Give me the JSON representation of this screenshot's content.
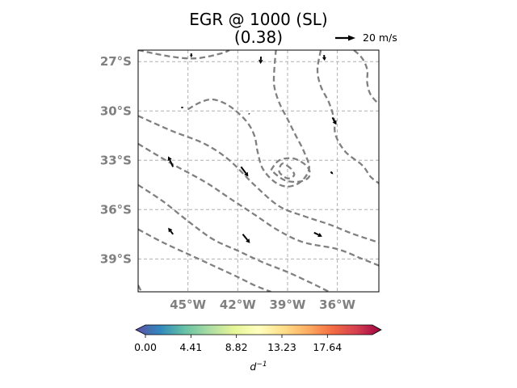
{
  "chart_data": {
    "type": "contour",
    "title_line1": "EGR @ 1000 (SL)",
    "title_line2": "(0.38)",
    "x_ticks": [
      "45°W",
      "42°W",
      "39°W",
      "36°W"
    ],
    "x_tick_values": [
      -45,
      -42,
      -39,
      -36
    ],
    "y_ticks": [
      "27°S",
      "30°S",
      "33°S",
      "36°S",
      "39°S"
    ],
    "y_tick_values": [
      -27,
      -30,
      -33,
      -36,
      -39
    ],
    "xlim": [
      -48,
      -33.5
    ],
    "ylim": [
      -41,
      -26.3
    ],
    "grid": true,
    "quiver_key_label": "20 m/s",
    "colorbar": {
      "ticks": [
        "0.00",
        "4.41",
        "8.82",
        "13.23",
        "17.64"
      ],
      "tick_values": [
        0.0,
        4.41,
        8.82,
        13.23,
        17.64
      ],
      "range": [
        0,
        22
      ],
      "label": "d",
      "label_superscript": "−1",
      "colormap": "Spectral_r",
      "colors": [
        "#5e4fa2",
        "#3288bd",
        "#66c2a5",
        "#abdda4",
        "#e6f598",
        "#ffffbf",
        "#fee08b",
        "#fdae61",
        "#f46d43",
        "#d53e4f",
        "#9e0142"
      ]
    },
    "contour_color": "#808080",
    "contours": [
      [
        [
          -48,
          -30.3
        ],
        [
          -46,
          -31.2
        ],
        [
          -44,
          -32.0
        ],
        [
          -42.5,
          -33.0
        ],
        [
          -41,
          -34.5
        ],
        [
          -39.5,
          -35.8
        ],
        [
          -38,
          -36.4
        ],
        [
          -36.5,
          -36.9
        ],
        [
          -35,
          -37.5
        ],
        [
          -33.5,
          -38.0
        ]
      ],
      [
        [
          -48,
          -32.0
        ],
        [
          -46,
          -33.2
        ],
        [
          -44,
          -34.3
        ],
        [
          -42.5,
          -35.3
        ],
        [
          -41,
          -36.3
        ],
        [
          -39.5,
          -37.3
        ],
        [
          -38,
          -38.0
        ],
        [
          -36,
          -38.4
        ],
        [
          -34.5,
          -39.0
        ],
        [
          -33.5,
          -39.4
        ]
      ],
      [
        [
          -48,
          -34.5
        ],
        [
          -46.5,
          -35.5
        ],
        [
          -45,
          -36.7
        ],
        [
          -43.5,
          -37.8
        ],
        [
          -42,
          -38.5
        ],
        [
          -40.5,
          -39.2
        ],
        [
          -39,
          -39.8
        ],
        [
          -37.5,
          -40.5
        ],
        [
          -36.5,
          -41.0
        ]
      ],
      [
        [
          -48,
          -37.2
        ],
        [
          -46.5,
          -38.0
        ],
        [
          -45,
          -38.7
        ],
        [
          -43.5,
          -39.4
        ],
        [
          -42,
          -40.1
        ],
        [
          -41,
          -40.6
        ],
        [
          -40,
          -41.0
        ]
      ],
      [
        [
          -48,
          -40.6
        ],
        [
          -47.8,
          -41.0
        ]
      ],
      [
        [
          -48,
          -26.3
        ],
        [
          -46,
          -26.7
        ],
        [
          -44.5,
          -26.8
        ],
        [
          -43,
          -26.5
        ],
        [
          -42.5,
          -26.3
        ]
      ],
      [
        [
          -45,
          -29.9
        ],
        [
          -44.3,
          -29.5
        ],
        [
          -43.5,
          -29.3
        ],
        [
          -42.5,
          -29.7
        ],
        [
          -41.5,
          -30.6
        ],
        [
          -41,
          -31.5
        ],
        [
          -40.8,
          -32.5
        ],
        [
          -40.5,
          -33.5
        ],
        [
          -39.8,
          -34.3
        ],
        [
          -39,
          -34.6
        ],
        [
          -38.2,
          -34.3
        ],
        [
          -37.7,
          -33.5
        ],
        [
          -38.0,
          -32.5
        ],
        [
          -38.5,
          -31.5
        ],
        [
          -39,
          -30.5
        ],
        [
          -39.5,
          -29.5
        ],
        [
          -39.8,
          -28.5
        ],
        [
          -39.8,
          -27.5
        ],
        [
          -39.7,
          -26.3
        ]
      ],
      [
        [
          -37,
          -26.3
        ],
        [
          -37.2,
          -27.5
        ],
        [
          -37.0,
          -28.5
        ],
        [
          -36.5,
          -29.5
        ],
        [
          -36.2,
          -30.5
        ],
        [
          -36.1,
          -31.5
        ],
        [
          -35.5,
          -32.5
        ],
        [
          -34.5,
          -33.3
        ],
        [
          -34.0,
          -34.0
        ],
        [
          -33.5,
          -34.4
        ]
      ],
      [
        [
          -35,
          -26.3
        ],
        [
          -34.5,
          -26.8
        ],
        [
          -34.2,
          -27.5
        ],
        [
          -34.2,
          -28.3
        ],
        [
          -34.0,
          -29.0
        ],
        [
          -33.5,
          -29.6
        ]
      ],
      [
        [
          -38.8,
          -33.5
        ],
        [
          -39.3,
          -33.2
        ],
        [
          -39.5,
          -33.7
        ],
        [
          -39.0,
          -34.1
        ],
        [
          -38.6,
          -33.9
        ],
        [
          -38.8,
          -33.5
        ]
      ],
      [
        [
          -40.0,
          -33.6
        ],
        [
          -39.5,
          -33.0
        ],
        [
          -38.6,
          -32.9
        ],
        [
          -37.8,
          -33.4
        ],
        [
          -37.7,
          -34.0
        ],
        [
          -38.3,
          -34.3
        ],
        [
          -39.2,
          -34.2
        ],
        [
          -40.0,
          -33.6
        ]
      ]
    ],
    "vectors": [
      {
        "lon": -44.8,
        "lat": -26.5,
        "u": 0.0,
        "v": -2.5
      },
      {
        "lon": -40.6,
        "lat": -26.7,
        "u": -0.3,
        "v": -4.5
      },
      {
        "lon": -36.8,
        "lat": -26.6,
        "u": 0.3,
        "v": -3.5
      },
      {
        "lon": -45.4,
        "lat": -29.8,
        "u": 1.5,
        "v": 0.2
      },
      {
        "lon": -41.3,
        "lat": -30.2,
        "u": -0.5,
        "v": 0.8
      },
      {
        "lon": -36.3,
        "lat": -30.4,
        "u": 2.5,
        "v": -4.5
      },
      {
        "lon": -45.9,
        "lat": -33.4,
        "u": -3.0,
        "v": 6.5
      },
      {
        "lon": -41.8,
        "lat": -33.4,
        "u": 4.5,
        "v": -6.0
      },
      {
        "lon": -36.4,
        "lat": -33.7,
        "u": 1.5,
        "v": -1.5
      },
      {
        "lon": -45.9,
        "lat": -37.5,
        "u": -3.0,
        "v": 4.0
      },
      {
        "lon": -41.7,
        "lat": -37.5,
        "u": 4.5,
        "v": -5.5
      },
      {
        "lon": -37.4,
        "lat": -37.4,
        "u": 5.0,
        "v": -2.5
      }
    ],
    "vector_reference_magnitude": 20
  }
}
